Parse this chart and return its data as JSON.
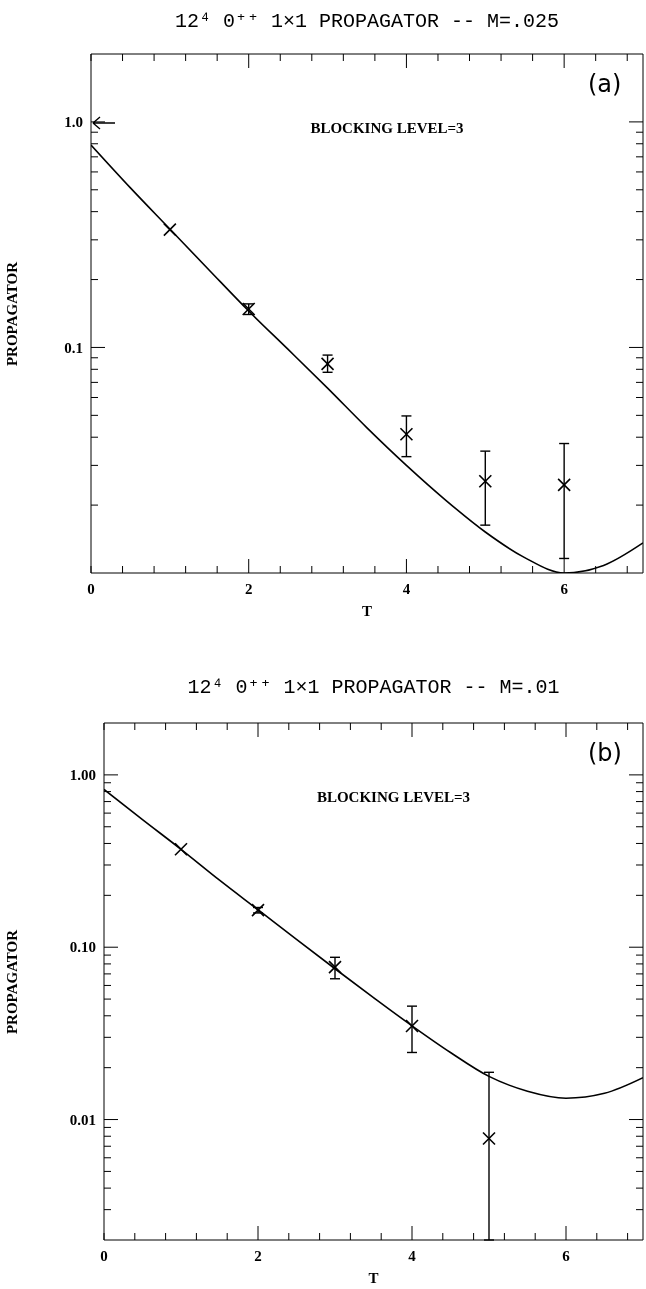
{
  "chart_data": [
    {
      "type": "scatter",
      "title": "12⁴ 0⁺⁺ 1×1 PROPAGATOR -- M=.025",
      "xlabel": "T",
      "ylabel": "PROPAGATOR",
      "annotations": [
        "(a)",
        "BLOCKING LEVEL=3"
      ],
      "log": "y",
      "grid": false,
      "legend": false,
      "marker": "cross",
      "xlim": [
        0,
        7
      ],
      "ylim": [
        0.01,
        2
      ],
      "xticks": [
        0,
        {
          "value": 0.4,
          "label": null
        },
        {
          "value": 0.8,
          "label": null
        },
        {
          "value": 1.2,
          "label": null
        },
        {
          "value": 1.6,
          "label": null
        },
        2,
        {
          "value": 2.4,
          "label": null
        },
        {
          "value": 2.8,
          "label": null
        },
        {
          "value": 3.2,
          "label": null
        },
        {
          "value": 3.6,
          "label": null
        },
        4,
        {
          "value": 4.4,
          "label": null
        },
        {
          "value": 4.8,
          "label": null
        },
        {
          "value": 5.2,
          "label": null
        },
        {
          "value": 5.6,
          "label": null
        },
        6,
        {
          "value": 6.4,
          "label": null
        },
        {
          "value": 6.8,
          "label": null
        }
      ],
      "yticks": [
        {
          "value": 0.02,
          "label": null
        },
        {
          "value": 0.03,
          "label": null
        },
        {
          "value": 0.04,
          "label": null
        },
        {
          "value": 0.05,
          "label": null
        },
        {
          "value": 0.06,
          "label": null
        },
        {
          "value": 0.07,
          "label": null
        },
        {
          "value": 0.08,
          "label": null
        },
        {
          "value": 0.09,
          "label": null
        },
        {
          "value": 0.1,
          "label": "0.1"
        },
        {
          "value": 0.2,
          "label": null
        },
        {
          "value": 0.3,
          "label": null
        },
        {
          "value": 0.4,
          "label": null
        },
        {
          "value": 0.5,
          "label": null
        },
        {
          "value": 0.6,
          "label": null
        },
        {
          "value": 0.7,
          "label": null
        },
        {
          "value": 0.8,
          "label": null
        },
        {
          "value": 0.9,
          "label": null
        },
        {
          "value": 1,
          "label": "1.0"
        }
      ],
      "series": [
        {
          "type": "scatter",
          "color": "#000000",
          "x": [
            1,
            2,
            3,
            4,
            5,
            6
          ],
          "values": [
            0.333,
            0.148,
            0.0846,
            0.0412,
            0.0255,
            0.0246
          ],
          "errors": [
            null,
            [
              0.14,
              0.156
            ],
            [
              0.0776,
              0.0925
            ],
            [
              0.0328,
              0.0497
            ],
            [
              0.0163,
              0.0347
            ],
            [
              0.0116,
              0.0375
            ]
          ]
        },
        {
          "type": "line",
          "color": "#000000",
          "marker": "none",
          "line_style": "solid",
          "x": [
            0,
            0.5,
            1,
            1.5,
            2,
            2.5,
            3,
            3.5,
            4,
            4.5,
            5,
            5.5,
            6,
            6.5,
            7
          ],
          "values": [
            0.79,
            0.51,
            0.335,
            0.22,
            0.145,
            0.098,
            0.066,
            0.044,
            0.03,
            0.021,
            0.0152,
            0.0117,
            0.01,
            0.0108,
            0.0136
          ]
        }
      ]
    },
    {
      "type": "scatter",
      "title": "12⁴ 0⁺⁺ 1×1 PROPAGATOR -- M=.01",
      "xlabel": "T",
      "ylabel": "PROPAGATOR",
      "annotations": [
        "(b)",
        "BLOCKING LEVEL=3"
      ],
      "log": "y",
      "grid": false,
      "legend": false,
      "marker": "cross",
      "xlim": [
        0,
        7
      ],
      "ylim": [
        0.002,
        2
      ],
      "xticks": [
        0,
        {
          "value": 0.4,
          "label": null
        },
        {
          "value": 0.8,
          "label": null
        },
        {
          "value": 1.2,
          "label": null
        },
        {
          "value": 1.6,
          "label": null
        },
        2,
        {
          "value": 2.4,
          "label": null
        },
        {
          "value": 2.8,
          "label": null
        },
        {
          "value": 3.2,
          "label": null
        },
        {
          "value": 3.6,
          "label": null
        },
        4,
        {
          "value": 4.4,
          "label": null
        },
        {
          "value": 4.8,
          "label": null
        },
        {
          "value": 5.2,
          "label": null
        },
        {
          "value": 5.6,
          "label": null
        },
        6,
        {
          "value": 6.4,
          "label": null
        },
        {
          "value": 6.8,
          "label": null
        }
      ],
      "yticks": [
        {
          "value": 0.003,
          "label": null
        },
        {
          "value": 0.004,
          "label": null
        },
        {
          "value": 0.005,
          "label": null
        },
        {
          "value": 0.006,
          "label": null
        },
        {
          "value": 0.007,
          "label": null
        },
        {
          "value": 0.008,
          "label": null
        },
        {
          "value": 0.009,
          "label": null
        },
        {
          "value": 0.01,
          "label": "0.01"
        },
        {
          "value": 0.02,
          "label": null
        },
        {
          "value": 0.03,
          "label": null
        },
        {
          "value": 0.04,
          "label": null
        },
        {
          "value": 0.05,
          "label": null
        },
        {
          "value": 0.06,
          "label": null
        },
        {
          "value": 0.07,
          "label": null
        },
        {
          "value": 0.08,
          "label": null
        },
        {
          "value": 0.09,
          "label": null
        },
        {
          "value": 0.1,
          "label": "0.10"
        },
        {
          "value": 0.2,
          "label": null
        },
        {
          "value": 0.3,
          "label": null
        },
        {
          "value": 0.4,
          "label": null
        },
        {
          "value": 0.5,
          "label": null
        },
        {
          "value": 0.6,
          "label": null
        },
        {
          "value": 0.7,
          "label": null
        },
        {
          "value": 0.8,
          "label": null
        },
        {
          "value": 0.9,
          "label": null
        },
        {
          "value": 1,
          "label": "1.00"
        }
      ],
      "series": [
        {
          "type": "scatter",
          "color": "#000000",
          "x": [
            1,
            2,
            3,
            4,
            5
          ],
          "values": [
            0.37,
            0.164,
            0.0767,
            0.0349,
            0.00776
          ],
          "errors": [
            null,
            [
              0.158,
              0.17
            ],
            [
              0.0656,
              0.0874
            ],
            [
              0.0245,
              0.0455
            ],
            [
              0.002,
              0.0188
            ]
          ]
        },
        {
          "type": "line",
          "color": "#000000",
          "marker": "none",
          "line_style": "solid",
          "x": [
            0,
            0.5,
            1,
            1.5,
            2,
            2.5,
            3,
            3.5,
            4,
            4.5,
            5,
            5.5,
            6,
            6.5,
            7
          ],
          "values": [
            0.824,
            0.55,
            0.37,
            0.245,
            0.165,
            0.111,
            0.075,
            0.051,
            0.035,
            0.0245,
            0.0178,
            0.0146,
            0.0133,
            0.0142,
            0.0175
          ]
        }
      ]
    }
  ]
}
